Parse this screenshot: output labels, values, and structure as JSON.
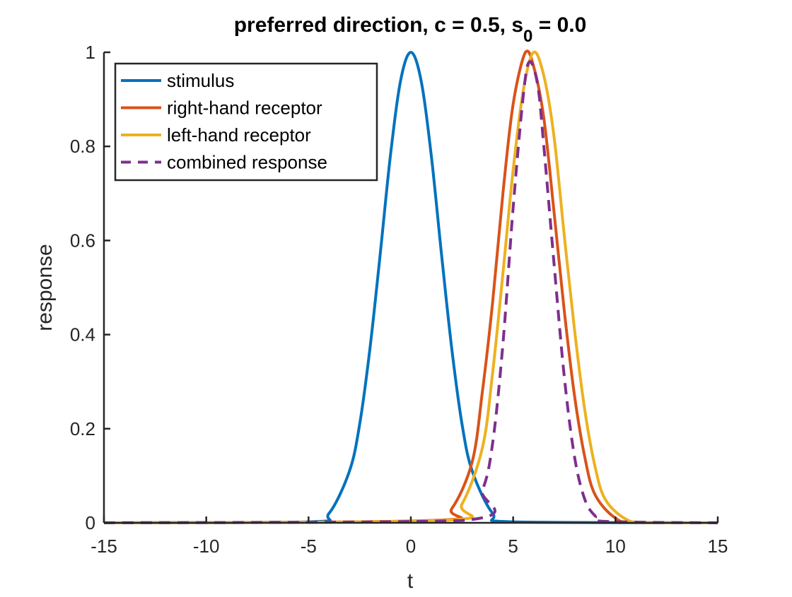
{
  "chart_data": {
    "type": "line",
    "title_main": "preferred direction,  c =   0.5, s",
    "title_sub": "0",
    "title_rest": " =   0.0",
    "xlabel": "t",
    "ylabel": "response",
    "xlim": [
      -15,
      15
    ],
    "ylim": [
      0,
      1
    ],
    "xticks": [
      -15,
      -10,
      -5,
      0,
      5,
      10,
      15
    ],
    "xtick_labels": [
      "-15",
      "-10",
      "-5",
      "0",
      "5",
      "10",
      "15"
    ],
    "yticks": [
      0,
      0.2,
      0.4,
      0.6,
      0.8,
      1
    ],
    "ytick_labels": [
      "0",
      "0.2",
      "0.4",
      "0.6",
      "0.8",
      "1"
    ],
    "grid": false,
    "legend_position": "top-left",
    "series": [
      {
        "name": "stimulus",
        "color": "#0072BD",
        "dash": "solid",
        "x": [
          -15,
          -5,
          -4,
          -3,
          -2.5,
          -2,
          -1.5,
          -1,
          -0.5,
          0,
          0.5,
          1,
          1.5,
          2,
          2.5,
          3,
          4,
          5,
          15
        ],
        "y": [
          0,
          0.002,
          0.02,
          0.11,
          0.21,
          0.37,
          0.57,
          0.78,
          0.94,
          1.0,
          0.94,
          0.78,
          0.57,
          0.37,
          0.21,
          0.11,
          0.02,
          0.002,
          0
        ]
      },
      {
        "name": "right-hand receptor",
        "color": "#D95319",
        "dash": "solid",
        "x": [
          -15,
          1,
          2,
          3,
          3.5,
          4,
          4.5,
          5,
          5.6,
          6,
          6.5,
          7,
          7.5,
          8,
          8.5,
          9,
          10,
          11,
          15
        ],
        "y": [
          0,
          0.005,
          0.03,
          0.13,
          0.28,
          0.47,
          0.7,
          0.89,
          1.0,
          0.97,
          0.86,
          0.66,
          0.45,
          0.27,
          0.14,
          0.06,
          0.01,
          0.001,
          0
        ]
      },
      {
        "name": "left-hand receptor",
        "color": "#EDB120",
        "dash": "solid",
        "x": [
          -15,
          1.5,
          2.5,
          3.5,
          4,
          4.5,
          5,
          5.5,
          6,
          6.5,
          7,
          7.5,
          8,
          8.5,
          9,
          9.5,
          10.5,
          11.5,
          15
        ],
        "y": [
          0,
          0.005,
          0.04,
          0.16,
          0.32,
          0.53,
          0.75,
          0.92,
          1.0,
          0.95,
          0.82,
          0.61,
          0.41,
          0.24,
          0.12,
          0.05,
          0.008,
          0.001,
          0
        ]
      },
      {
        "name": "combined response",
        "color": "#7E2F8E",
        "dash": "dashed",
        "x": [
          -15,
          2.5,
          3.5,
          4,
          4.5,
          5,
          5.5,
          5.8,
          6.2,
          6.5,
          7,
          7.5,
          8,
          8.5,
          9,
          9.5,
          15
        ],
        "y": [
          0,
          0.005,
          0.07,
          0.17,
          0.38,
          0.67,
          0.91,
          0.98,
          0.93,
          0.8,
          0.55,
          0.31,
          0.14,
          0.05,
          0.015,
          0.003,
          0
        ]
      }
    ]
  }
}
